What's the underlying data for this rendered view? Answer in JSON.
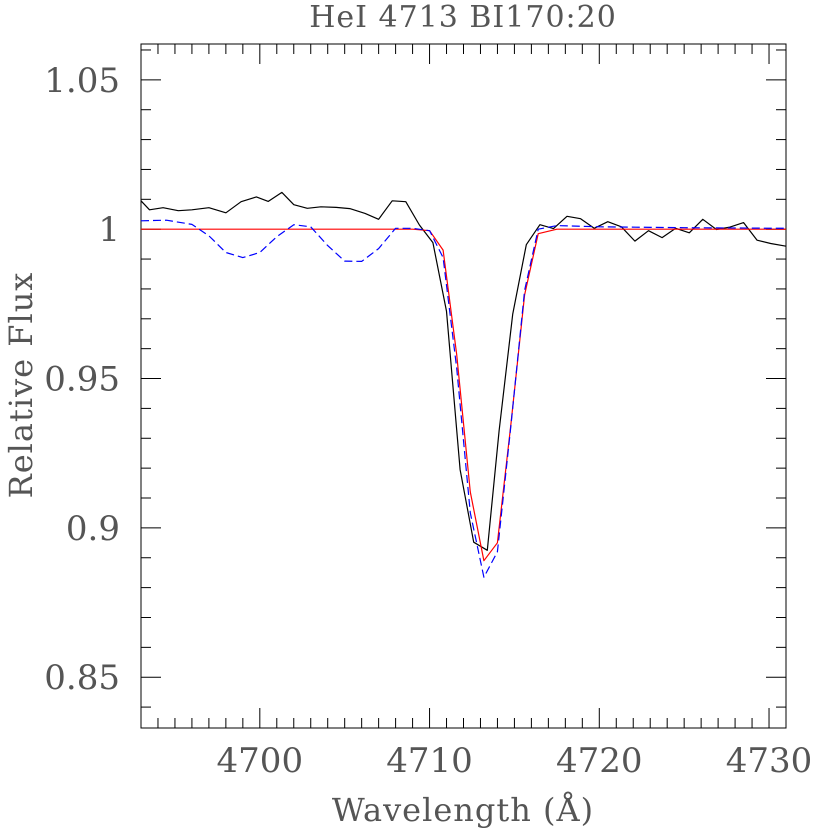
{
  "chart_data": {
    "type": "line",
    "title": "HeI 4713 BI170:20",
    "xlabel": "Wavelength (Å)",
    "ylabel": "Relative Flux",
    "xlim": [
      4693,
      4731
    ],
    "ylim": [
      0.833,
      1.062
    ],
    "x_major_ticks": [
      4700,
      4710,
      4720,
      4730
    ],
    "x_tick_labels": [
      "4700",
      "4710",
      "4720",
      "4730"
    ],
    "x_minor_step": 1,
    "y_major_ticks": [
      0.85,
      0.9,
      0.95,
      1.0,
      1.05
    ],
    "y_tick_labels": [
      "0.85",
      "0.9",
      "0.95",
      "1",
      "1.05"
    ],
    "y_minor_step": 0.01,
    "grid": false,
    "series": [
      {
        "color": "#000000",
        "style": "solid",
        "x": [
          4693.0,
          4693.5,
          4694.3,
          4695.2,
          4696.0,
          4697.0,
          4698.0,
          4698.9,
          4699.8,
          4700.5,
          4701.3,
          4702.0,
          4702.8,
          4703.6,
          4704.5,
          4705.3,
          4706.2,
          4707.0,
          4707.8,
          4708.6,
          4709.4,
          4710.2,
          4711.0,
          4711.8,
          4712.6,
          4713.4,
          4714.1,
          4714.9,
          4715.7,
          4716.5,
          4717.3,
          4718.1,
          4718.9,
          4719.7,
          4720.5,
          4721.3,
          4722.1,
          4722.9,
          4723.7,
          4724.5,
          4725.3,
          4726.1,
          4726.9,
          4727.7,
          4728.5,
          4729.3,
          4730.1,
          4731.0
        ],
        "y": [
          1.0095,
          1.0065,
          1.0072,
          1.0062,
          1.0065,
          1.0072,
          1.0055,
          1.0092,
          1.0108,
          1.0093,
          1.0123,
          1.0082,
          1.007,
          1.0075,
          1.0073,
          1.0069,
          1.0053,
          1.0033,
          1.0095,
          1.0092,
          1.0014,
          0.9955,
          0.9725,
          0.9195,
          0.8952,
          0.8925,
          0.9325,
          0.9715,
          0.9948,
          1.0015,
          1.0002,
          1.0043,
          1.0035,
          1.0003,
          1.0025,
          1.0008,
          0.996,
          0.9995,
          0.9972,
          1.0003,
          0.9988,
          1.0033,
          0.9999,
          1.0007,
          1.0022,
          0.9963,
          0.9952,
          0.9943
        ]
      },
      {
        "color": "#ff0000",
        "style": "solid",
        "x": [
          4693.0,
          4708.0,
          4709.0,
          4710.0,
          4710.8,
          4711.6,
          4712.4,
          4713.2,
          4714.0,
          4714.8,
          4715.6,
          4716.4,
          4717.5,
          4731.0
        ],
        "y": [
          1.0,
          1.0,
          1.0,
          0.9995,
          0.993,
          0.958,
          0.912,
          0.889,
          0.895,
          0.935,
          0.978,
          0.9985,
          1.0,
          1.0
        ]
      },
      {
        "color": "#0000ff",
        "style": "dashed",
        "x": [
          4693.0,
          4694.5,
          4696.0,
          4697.0,
          4698.0,
          4699.0,
          4700.0,
          4701.0,
          4702.0,
          4703.0,
          4704.0,
          4705.0,
          4706.0,
          4707.0,
          4708.0,
          4709.0,
          4710.0,
          4710.8,
          4711.6,
          4712.4,
          4713.2,
          4714.0,
          4714.8,
          4715.6,
          4716.4,
          4717.5,
          4720.0,
          4725.0,
          4731.0
        ],
        "y": [
          1.0028,
          1.003,
          1.0016,
          0.9978,
          0.9922,
          0.9905,
          0.9922,
          0.9975,
          1.0015,
          1.0008,
          0.9945,
          0.9893,
          0.9892,
          0.9935,
          1.0003,
          1.0003,
          0.9995,
          0.9905,
          0.9535,
          0.905,
          0.8835,
          0.892,
          0.9345,
          0.9795,
          1.0,
          1.0012,
          1.0008,
          1.0005,
          1.0003
        ]
      }
    ]
  }
}
